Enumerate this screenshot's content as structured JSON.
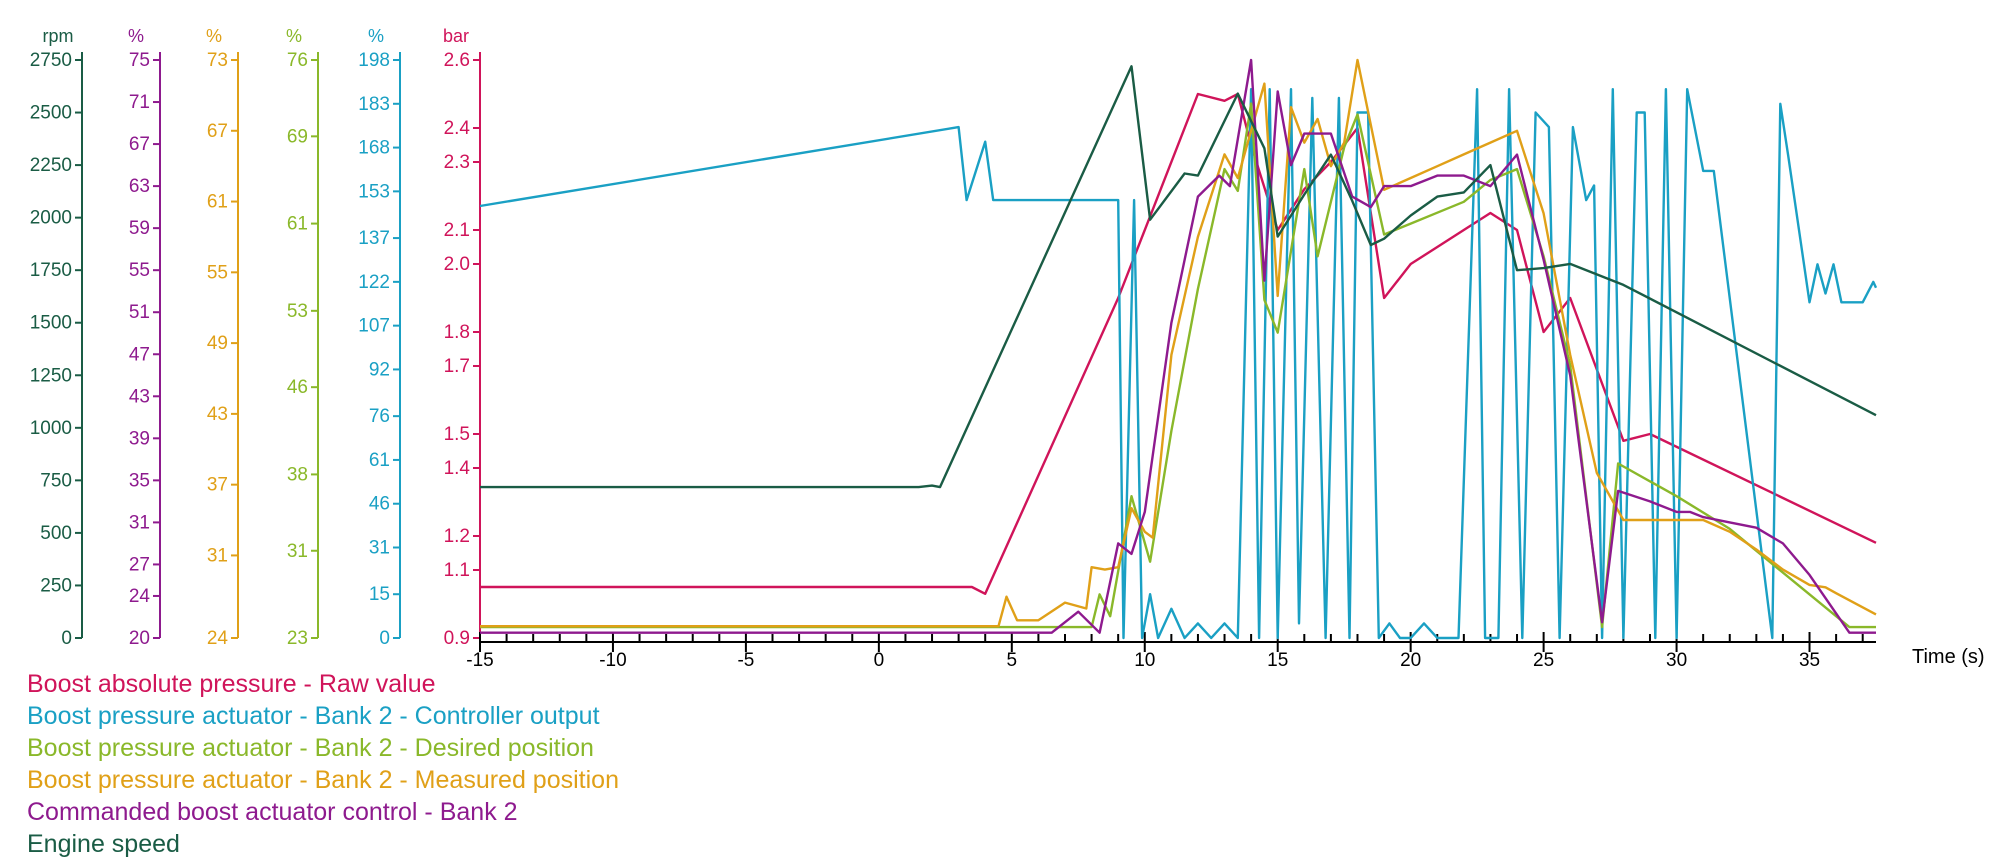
{
  "chart_data": {
    "type": "line",
    "title": "",
    "xlabel": "Time (s)",
    "xlim": [
      -15,
      37.5
    ],
    "x_ticks": [
      -15,
      -10,
      -5,
      0,
      5,
      10,
      15,
      20,
      25,
      30,
      35
    ],
    "grid": false,
    "legend_position": "bottom-left",
    "axes": [
      {
        "id": "rpm",
        "unit": "rpm",
        "color": "#1a5c45",
        "min": 0,
        "max": 2750,
        "ticks": [
          "0",
          "250",
          "500",
          "750",
          "1000",
          "1250",
          "1500",
          "1750",
          "2000",
          "2250",
          "2500",
          "2750"
        ]
      },
      {
        "id": "cmd",
        "unit": "%",
        "color": "#8e1a8e",
        "min": 20,
        "max": 75,
        "ticks": [
          "20",
          "24",
          "27",
          "31",
          "35",
          "39",
          "43",
          "47",
          "51",
          "55",
          "59",
          "63",
          "67",
          "71",
          "75"
        ]
      },
      {
        "id": "meas",
        "unit": "%",
        "color": "#e0a018",
        "min": 24,
        "max": 73,
        "ticks": [
          "24",
          "31",
          "37",
          "43",
          "49",
          "55",
          "61",
          "67",
          "73"
        ]
      },
      {
        "id": "des",
        "unit": "%",
        "color": "#8ab82a",
        "min": 23,
        "max": 76,
        "ticks": [
          "23",
          "31",
          "38",
          "46",
          "53",
          "61",
          "69",
          "76"
        ]
      },
      {
        "id": "ctrl",
        "unit": "%",
        "color": "#1aa0c4",
        "min": 0,
        "max": 198,
        "ticks": [
          "0",
          "15",
          "31",
          "46",
          "61",
          "76",
          "92",
          "107",
          "122",
          "137",
          "153",
          "168",
          "183",
          "198"
        ]
      },
      {
        "id": "bar",
        "unit": "bar",
        "color": "#d0145a",
        "min": 0.9,
        "max": 2.6,
        "ticks": [
          "0.9",
          "1.1",
          "1.2",
          "1.4",
          "1.5",
          "1.7",
          "1.8",
          "2.0",
          "2.1",
          "2.3",
          "2.4",
          "2.6"
        ]
      }
    ],
    "series": [
      {
        "name": "Boost absolute pressure - Raw value",
        "axis": "bar",
        "color": "#d0145a",
        "x": [
          -15,
          3.5,
          4,
          9,
          12,
          13,
          13.5,
          14,
          15,
          16,
          17,
          18,
          19,
          20,
          21,
          22,
          23,
          24,
          25,
          26,
          28,
          29,
          37.5
        ],
        "y": [
          1.05,
          1.05,
          1.03,
          1.9,
          2.5,
          2.48,
          2.5,
          2.35,
          2.1,
          2.22,
          2.3,
          2.4,
          1.9,
          2.0,
          2.05,
          2.1,
          2.15,
          2.1,
          1.8,
          1.9,
          1.48,
          1.5,
          1.18
        ]
      },
      {
        "name": "Boost pressure actuator - Bank 2 - Controller output",
        "axis": "ctrl",
        "color": "#1aa0c4",
        "x": [
          -15,
          3,
          3.3,
          4,
          4.3,
          9,
          9.2,
          9.6,
          9.9,
          10.2,
          10.5,
          11,
          11.5,
          12,
          12.5,
          13,
          13.5,
          14,
          14.3,
          14.7,
          15,
          15.5,
          15.8,
          16.3,
          16.8,
          17.3,
          17.7,
          18,
          18.4,
          18.8,
          19.2,
          19.6,
          20,
          20.5,
          21,
          21.8,
          22.5,
          22.8,
          23.3,
          23.7,
          24.2,
          24.7,
          25.2,
          25.6,
          26.1,
          26.6,
          26.9,
          27.2,
          27.6,
          28,
          28.5,
          28.8,
          29.2,
          29.6,
          30,
          30.4,
          31,
          31.4,
          33.6,
          33.9,
          34.2,
          35,
          35.3,
          35.6,
          35.9,
          36.2,
          36.5,
          37,
          37.4,
          37.5
        ],
        "y": [
          148,
          175,
          150,
          170,
          150,
          150,
          0,
          150,
          0,
          15,
          0,
          10,
          0,
          5,
          0,
          5,
          0,
          188,
          0,
          188,
          0,
          188,
          5,
          185,
          0,
          185,
          0,
          180,
          180,
          0,
          5,
          0,
          0,
          5,
          0,
          0,
          188,
          0,
          0,
          188,
          0,
          180,
          175,
          0,
          175,
          150,
          155,
          0,
          188,
          0,
          180,
          180,
          0,
          188,
          0,
          188,
          160,
          160,
          0,
          183,
          165,
          115,
          128,
          118,
          128,
          115,
          115,
          115,
          122,
          120
        ]
      },
      {
        "name": "Boost pressure actuator - Bank 2 - Desired position",
        "axis": "des",
        "color": "#8ab82a",
        "x": [
          -15,
          4.5,
          5,
          8,
          8.3,
          8.7,
          9.5,
          10.2,
          11,
          12,
          13,
          13.5,
          14,
          14.5,
          15,
          16,
          16.5,
          17.5,
          18,
          19,
          20,
          21,
          22,
          23,
          24,
          25,
          26,
          27.2,
          27.8,
          30,
          32,
          34,
          36.5,
          37.5
        ],
        "y": [
          24,
          24,
          24,
          24,
          27,
          25,
          36,
          30,
          42,
          55,
          66,
          64,
          72,
          54,
          51,
          66,
          58,
          68,
          71,
          60,
          61,
          62,
          63,
          65,
          66,
          58,
          48,
          24,
          39,
          36,
          33,
          29,
          24,
          24
        ]
      },
      {
        "name": "Boost pressure actuator - Bank 2 - Measured position",
        "axis": "meas",
        "color": "#e0a018",
        "x": [
          -15,
          4.5,
          4.8,
          5.2,
          6,
          7,
          7.8,
          8,
          8.5,
          9,
          9.5,
          10,
          10.3,
          11,
          12,
          13,
          13.5,
          14.5,
          15,
          15.5,
          16,
          16.5,
          17,
          17.5,
          18,
          19,
          20,
          21,
          22,
          23,
          24,
          25,
          26,
          27,
          28,
          28.6,
          29,
          30,
          31,
          32,
          33,
          34,
          35,
          35.6,
          36,
          37.5
        ],
        "y": [
          25,
          25,
          27.5,
          25.5,
          25.5,
          27,
          26.5,
          30,
          29.8,
          30,
          35,
          33,
          32.5,
          48,
          58,
          65,
          63,
          71,
          53,
          69,
          66,
          68,
          64,
          66,
          73,
          62,
          63,
          64,
          65,
          66,
          67,
          60,
          48,
          38,
          34,
          34,
          34,
          34,
          34,
          33,
          31.5,
          29.8,
          28.5,
          28.3,
          27.8,
          26
        ]
      },
      {
        "name": "Commanded boost actuator control - Bank 2",
        "axis": "cmd",
        "color": "#8e1a8e",
        "x": [
          -15,
          6.5,
          7.5,
          8.3,
          9,
          9.5,
          10,
          11,
          12,
          12.8,
          13.2,
          14,
          14.5,
          15,
          15.5,
          16,
          17,
          17.8,
          18.5,
          19,
          20,
          21,
          22,
          23,
          24,
          25,
          26,
          27.2,
          27.8,
          29,
          30,
          30.5,
          31,
          32,
          33,
          34,
          35,
          36.5,
          37.5
        ],
        "y": [
          20.5,
          20.5,
          22.5,
          20.5,
          29,
          28,
          32,
          50,
          62,
          64,
          63,
          75,
          54,
          72,
          65,
          68,
          68,
          62,
          61,
          63,
          63,
          64,
          64,
          63,
          66,
          56,
          45,
          21.5,
          34,
          33,
          32,
          32,
          31.5,
          31,
          30.5,
          29,
          26,
          20.5,
          20.5
        ]
      },
      {
        "name": "Engine speed",
        "axis": "rpm",
        "color": "#1a5c45",
        "x": [
          -15,
          1.5,
          2,
          2.3,
          9.5,
          10.2,
          11.5,
          12,
          13.5,
          14.5,
          15,
          16,
          17,
          17.8,
          18.5,
          19,
          20,
          21,
          22,
          23,
          24,
          25,
          26,
          27,
          28,
          37.5
        ],
        "y": [
          718,
          718,
          725,
          718,
          2720,
          1990,
          2210,
          2200,
          2590,
          2330,
          1910,
          2110,
          2300,
          2080,
          1870,
          1900,
          2010,
          2100,
          2120,
          2250,
          1750,
          1760,
          1780,
          1730,
          1680,
          1060
        ]
      }
    ]
  }
}
